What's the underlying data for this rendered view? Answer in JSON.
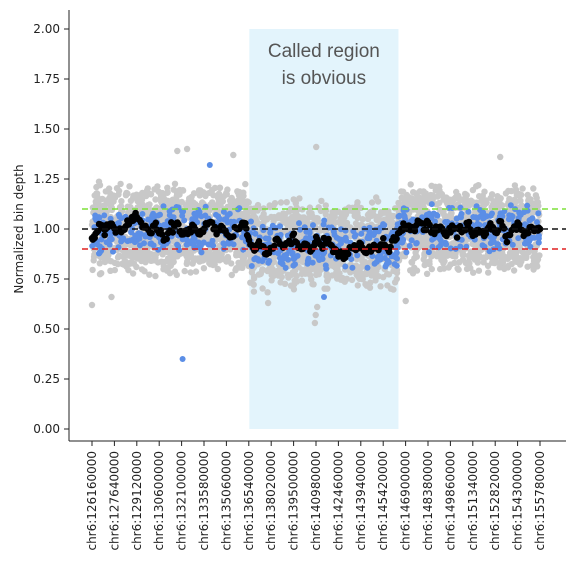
{
  "chart_data": {
    "type": "scatter",
    "title": "",
    "xlabel": "",
    "ylabel": "Normalized bin depth",
    "ylim": [
      -0.05,
      2.08
    ],
    "yticks": [
      "0.00",
      "0.25",
      "0.50",
      "0.75",
      "1.00",
      "1.25",
      "1.50",
      "1.75",
      "2.00"
    ],
    "xticks": [
      "chr6:126160000",
      "chr6:127640000",
      "chr6:129120000",
      "chr6:130600000",
      "chr6:132100000",
      "chr6:133580000",
      "chr6:135060000",
      "chr6:136540000",
      "chr6:138020000",
      "chr6:139500000",
      "chr6:140980000",
      "chr6:142460000",
      "chr6:143940000",
      "chr6:145420000",
      "chr6:146900000",
      "chr6:148380000",
      "chr6:149860000",
      "chr6:151340000",
      "chr6:152820000",
      "chr6:154300000",
      "chr6:155780000"
    ],
    "x_range": [
      126160000,
      155780000
    ],
    "highlight_region": {
      "x_start": 136560000,
      "x_end": 146420000,
      "color": "#e3f4fc"
    },
    "annotation": {
      "lines": [
        "Called region",
        "is obvious"
      ]
    },
    "reference_lines": [
      {
        "y": 1.1,
        "color": "#7ee03a",
        "style": "dashed"
      },
      {
        "y": 1.0,
        "color": "#111111",
        "style": "dashed"
      },
      {
        "y": 0.9,
        "color": "#e02020",
        "style": "dashed"
      }
    ],
    "series": [
      {
        "color": "#c8c8c8",
        "kind": "raw bins",
        "segments": [
          {
            "x_start": 126160000,
            "x_end": 136560000,
            "mean": 1.0,
            "spread": 0.24
          },
          {
            "x_start": 136560000,
            "x_end": 146420000,
            "mean": 0.92,
            "spread": 0.24
          },
          {
            "x_start": 146420000,
            "x_end": 155780000,
            "mean": 1.0,
            "spread": 0.24
          }
        ],
        "outliers": [
          {
            "x": 126160000,
            "y": 0.62
          },
          {
            "x": 127450000,
            "y": 0.66
          },
          {
            "x": 131800000,
            "y": 1.39
          },
          {
            "x": 132450000,
            "y": 1.4
          },
          {
            "x": 135500000,
            "y": 1.37
          },
          {
            "x": 137800000,
            "y": 0.63
          },
          {
            "x": 140980000,
            "y": 1.41
          },
          {
            "x": 140900000,
            "y": 0.53
          },
          {
            "x": 140950000,
            "y": 0.57
          },
          {
            "x": 141050000,
            "y": 0.61
          },
          {
            "x": 146900000,
            "y": 0.64
          },
          {
            "x": 153150000,
            "y": 1.36
          }
        ]
      },
      {
        "color": "#5b8ee6",
        "kind": "filtered bins",
        "segments": [
          {
            "x_start": 126160000,
            "x_end": 136560000,
            "mean": 1.0,
            "spread": 0.13
          },
          {
            "x_start": 136560000,
            "x_end": 146420000,
            "mean": 0.92,
            "spread": 0.13
          },
          {
            "x_start": 146420000,
            "x_end": 155780000,
            "mean": 1.0,
            "spread": 0.13
          }
        ],
        "outliers": [
          {
            "x": 132150000,
            "y": 0.35
          },
          {
            "x": 133950000,
            "y": 1.32
          },
          {
            "x": 141500000,
            "y": 0.66
          }
        ]
      },
      {
        "color": "#000000",
        "kind": "smoothed depth",
        "x": [
          126160000,
          126400000,
          126700000,
          127000000,
          127300000,
          127640000,
          128000000,
          128400000,
          128800000,
          129120000,
          129500000,
          129900000,
          130300000,
          130600000,
          131000000,
          131400000,
          131800000,
          132100000,
          132500000,
          132900000,
          133300000,
          133580000,
          134000000,
          134400000,
          134800000,
          135060000,
          135500000,
          135900000,
          136300000,
          136540000,
          136900000,
          137300000,
          137700000,
          138020000,
          138400000,
          138800000,
          139200000,
          139500000,
          139900000,
          140300000,
          140700000,
          140980000,
          141300000,
          141700000,
          142100000,
          142460000,
          142800000,
          143200000,
          143600000,
          143940000,
          144300000,
          144700000,
          145100000,
          145420000,
          145800000,
          146200000,
          146600000,
          146900000,
          147300000,
          147700000,
          148100000,
          148380000,
          148800000,
          149200000,
          149600000,
          149860000,
          150300000,
          150700000,
          151000000,
          151340000,
          151700000,
          152100000,
          152500000,
          152820000,
          153200000,
          153600000,
          154000000,
          154300000,
          154700000,
          155100000,
          155500000,
          155780000
        ],
        "y": [
          0.95,
          0.98,
          1.02,
          0.99,
          1.03,
          1.01,
          0.98,
          1.0,
          1.05,
          1.07,
          1.02,
          0.99,
          1.03,
          0.98,
          0.94,
          1.0,
          1.02,
          0.97,
          1.0,
          1.01,
          0.98,
          1.0,
          1.03,
          0.99,
          1.01,
          0.98,
          0.97,
          1.0,
          1.03,
          0.94,
          0.9,
          0.92,
          0.88,
          0.92,
          0.95,
          0.91,
          0.93,
          0.95,
          0.9,
          0.93,
          0.89,
          0.94,
          0.92,
          0.95,
          0.9,
          0.88,
          0.86,
          0.91,
          0.89,
          0.92,
          0.88,
          0.91,
          0.9,
          0.93,
          0.9,
          0.95,
          0.98,
          1.02,
          1.0,
          1.04,
          1.01,
          1.03,
          0.98,
          1.0,
          0.96,
          1.01,
          0.97,
          1.0,
          1.03,
          0.98,
          1.0,
          0.97,
          1.02,
          0.99,
          1.03,
          0.96,
          1.0,
          1.02,
          0.97,
          1.01,
          0.99,
          1.0
        ]
      }
    ]
  }
}
